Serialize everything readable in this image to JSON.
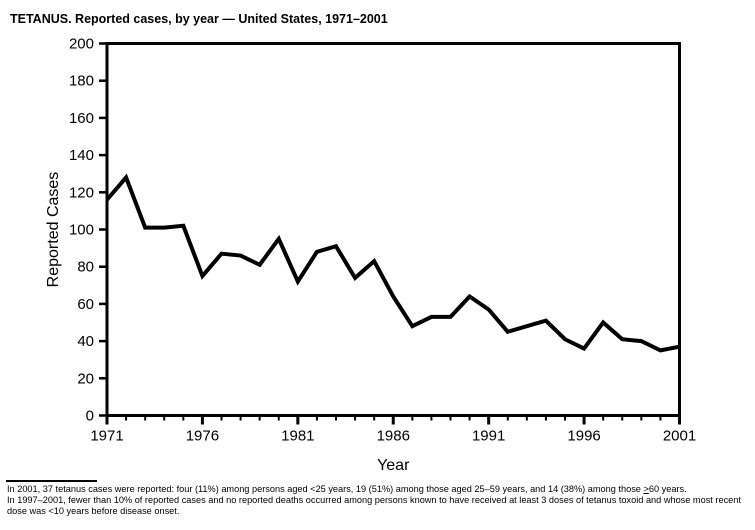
{
  "title": "TETANUS. Reported cases, by year — United States, 1971–2001",
  "footnote": {
    "s1_pre": "In 2001, 37 tetanus cases were reported: four (11%) among persons aged <25 years, 19 (51%) among those aged 25–59 years, and 14 (38%) among those ",
    "s1_geq": ">",
    "s1_post": "60 years.",
    "s2": "In 1997–2001, fewer than 10% of reported cases and no reported deaths occurred among persons known to have received at least 3 doses of tetanus toxoid and whose most recent dose was <10 years before disease onset."
  },
  "colors": {
    "line": "#000000",
    "axis": "#000000",
    "text": "#000000",
    "background": "#ffffff"
  },
  "chart_data": {
    "type": "line",
    "title": "TETANUS. Reported cases, by year — United States, 1971–2001",
    "xlabel": "Year",
    "ylabel": "Reported Cases",
    "x": [
      1971,
      1972,
      1973,
      1974,
      1975,
      1976,
      1977,
      1978,
      1979,
      1980,
      1981,
      1982,
      1983,
      1984,
      1985,
      1986,
      1987,
      1988,
      1989,
      1990,
      1991,
      1992,
      1993,
      1994,
      1995,
      1996,
      1997,
      1998,
      1999,
      2000,
      2001
    ],
    "series": [
      {
        "name": "Reported tetanus cases",
        "values": [
          116,
          128,
          101,
          101,
          102,
          75,
          87,
          86,
          81,
          95,
          72,
          88,
          91,
          74,
          83,
          64,
          48,
          53,
          53,
          64,
          57,
          45,
          48,
          51,
          41,
          36,
          50,
          41,
          40,
          35,
          37
        ]
      }
    ],
    "ylim": [
      0,
      200
    ],
    "ytick_interval": 20,
    "xticks_labeled": [
      1971,
      1976,
      1981,
      1986,
      1991,
      1996,
      2001
    ],
    "xtick_minor_interval": 1,
    "grid": false,
    "legend": "none",
    "frame": "box"
  }
}
